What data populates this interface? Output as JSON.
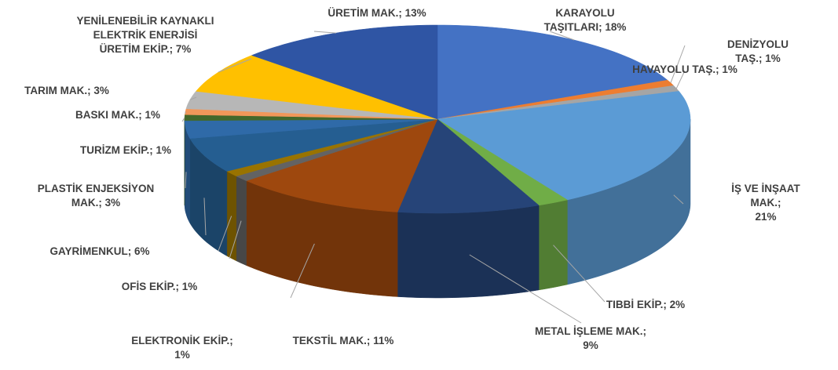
{
  "chart_data": {
    "type": "pie3d",
    "value_labels": [
      "KARAYOLU\nTAŞITLARI; 18%",
      "DENİZYOLU TAŞ.; 1%",
      "HAVAYOLU TAŞ.; 1%",
      "İŞ VE İNŞAAT MAK.;\n21%",
      "TIBBİ EKİP.; 2%",
      "METAL İŞLEME MAK.;\n9%",
      "TEKSTİL MAK.; 11%",
      "ELEKTRONİK EKİP.;\n1%",
      "OFİS EKİP.; 1%",
      "GAYRİMENKUL; 6%",
      "PLASTİK ENJEKSİYON\nMAK.; 3%",
      "TURİZM EKİP.; 1%",
      "BASKI MAK.; 1%",
      "TARIM MAK.; 3%",
      "YENİLENEBİLİR KAYNAKLI\nELEKTRİK ENERJİSİ\nÜRETİM EKİP.; 7%",
      "ÜRETİM MAK.; 13%"
    ],
    "values": [
      18,
      1,
      1,
      21,
      2,
      9,
      11,
      1,
      1,
      6,
      3,
      1,
      1,
      3,
      7,
      13
    ],
    "colors": [
      "#4472c4",
      "#ed7d31",
      "#a5a5a5",
      "#5b9bd5",
      "#70ad47",
      "#264478",
      "#9e480e",
      "#636363",
      "#997300",
      "#255e91",
      "#2f6aa8",
      "#43682b",
      "#f1975a",
      "#b7b7b7",
      "#ffc000",
      "#2f55a4"
    ]
  }
}
